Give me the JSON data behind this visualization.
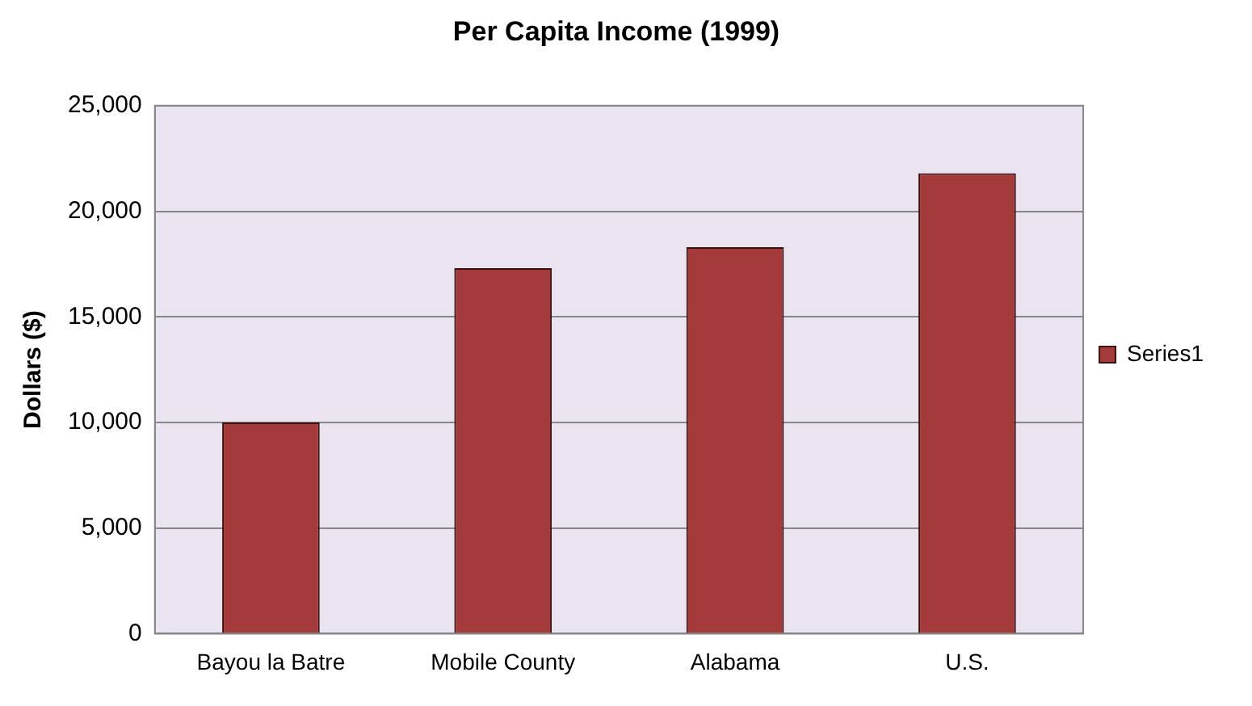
{
  "chart_data": {
    "type": "bar",
    "title": "Per Capita Income (1999)",
    "ylabel": "Dollars ($)",
    "categories": [
      "Bayou la Batre",
      "Mobile County",
      "Alabama",
      "U.S."
    ],
    "series": [
      {
        "name": "Series1",
        "color": "#a33b3b",
        "values": [
          10000,
          17300,
          18300,
          21800
        ]
      }
    ],
    "ylim": [
      0,
      25000
    ],
    "yticks": [
      {
        "value": 0,
        "label": "0"
      },
      {
        "value": 5000,
        "label": "5,000"
      },
      {
        "value": 10000,
        "label": "10,000"
      },
      {
        "value": 15000,
        "label": "15,000"
      },
      {
        "value": 20000,
        "label": "20,000"
      },
      {
        "value": 25000,
        "label": "25,000"
      }
    ],
    "grid": "y",
    "legend": "right"
  }
}
